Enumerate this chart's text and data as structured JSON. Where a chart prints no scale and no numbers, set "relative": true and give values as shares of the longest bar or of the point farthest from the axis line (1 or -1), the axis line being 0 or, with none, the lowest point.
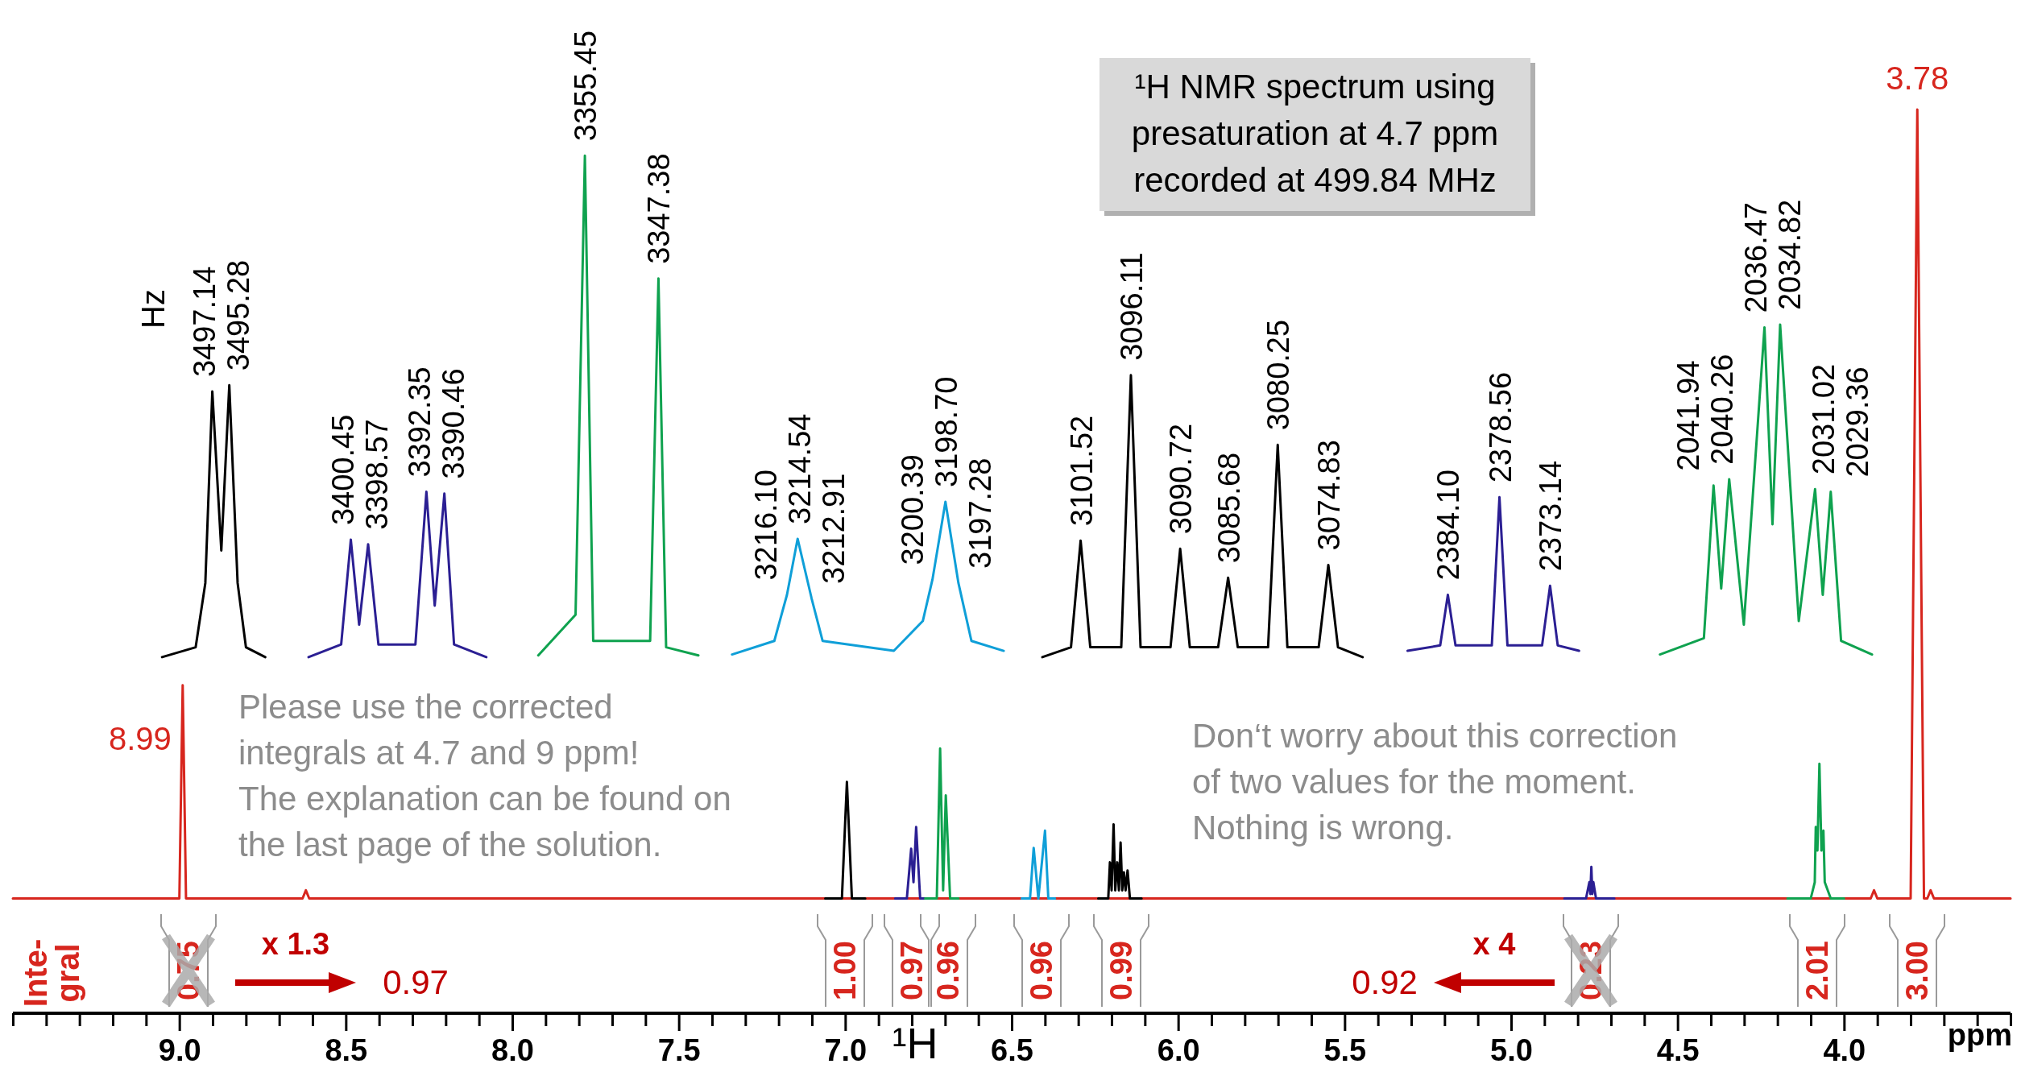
{
  "chart_data": {
    "type": "line",
    "relative": true,
    "xlabel": "¹H",
    "xlim": [
      9.5,
      3.5
    ],
    "xticks": [
      {
        "value": 9.5,
        "label": null
      },
      {
        "value": 9.4,
        "label": null
      },
      {
        "value": 9.3,
        "label": null
      },
      {
        "value": 9.2,
        "label": null
      },
      {
        "value": 9.1,
        "label": null
      },
      {
        "value": 9.0,
        "label": "9.0"
      },
      {
        "value": 8.9,
        "label": null
      },
      {
        "value": 8.8,
        "label": null
      },
      {
        "value": 8.7,
        "label": null
      },
      {
        "value": 8.6,
        "label": null
      },
      {
        "value": 8.5,
        "label": "8.5"
      },
      {
        "value": 8.4,
        "label": null
      },
      {
        "value": 8.3,
        "label": null
      },
      {
        "value": 8.2,
        "label": null
      },
      {
        "value": 8.1,
        "label": null
      },
      {
        "value": 8.0,
        "label": "8.0"
      },
      {
        "value": 7.9,
        "label": null
      },
      {
        "value": 7.8,
        "label": null
      },
      {
        "value": 7.7,
        "label": null
      },
      {
        "value": 7.6,
        "label": null
      },
      {
        "value": 7.5,
        "label": "7.5"
      },
      {
        "value": 7.4,
        "label": null
      },
      {
        "value": 7.3,
        "label": null
      },
      {
        "value": 7.2,
        "label": null
      },
      {
        "value": 7.1,
        "label": null
      },
      {
        "value": 7.0,
        "label": "7.0"
      },
      {
        "value": 6.9,
        "label": null
      },
      {
        "value": 6.8,
        "label": null
      },
      {
        "value": 6.7,
        "label": null
      },
      {
        "value": 6.6,
        "label": null
      },
      {
        "value": 6.5,
        "label": "6.5"
      },
      {
        "value": 6.4,
        "label": null
      },
      {
        "value": 6.3,
        "label": null
      },
      {
        "value": 6.2,
        "label": null
      },
      {
        "value": 6.1,
        "label": null
      },
      {
        "value": 6.0,
        "label": "6.0"
      },
      {
        "value": 5.9,
        "label": null
      },
      {
        "value": 5.8,
        "label": null
      },
      {
        "value": 5.7,
        "label": null
      },
      {
        "value": 5.6,
        "label": null
      },
      {
        "value": 5.5,
        "label": "5.5"
      },
      {
        "value": 5.4,
        "label": null
      },
      {
        "value": 5.3,
        "label": null
      },
      {
        "value": 5.2,
        "label": null
      },
      {
        "value": 5.1,
        "label": null
      },
      {
        "value": 5.0,
        "label": "5.0"
      },
      {
        "value": 4.9,
        "label": null
      },
      {
        "value": 4.8,
        "label": null
      },
      {
        "value": 4.7,
        "label": null
      },
      {
        "value": 4.6,
        "label": null
      },
      {
        "value": 4.5,
        "label": "4.5"
      },
      {
        "value": 4.4,
        "label": null
      },
      {
        "value": 4.3,
        "label": null
      },
      {
        "value": 4.2,
        "label": null
      },
      {
        "value": 4.1,
        "label": null
      },
      {
        "value": 4.0,
        "label": "4.0"
      },
      {
        "value": 3.9,
        "label": null
      },
      {
        "value": 3.8,
        "label": null
      },
      {
        "value": 3.7,
        "label": null
      },
      {
        "value": 3.6,
        "label": null
      },
      {
        "value": 3.5,
        "label": null
      }
    ],
    "series": [
      {
        "color": "#d7261e",
        "x": [
          9.5,
          9.0,
          8.99,
          8.98,
          8.63,
          8.62,
          8.61,
          3.92,
          3.91,
          3.9,
          3.8,
          3.78,
          3.76,
          3.75,
          3.74,
          3.73,
          3.5
        ],
        "values": [
          0.127,
          0.127,
          0.363,
          0.127,
          0.127,
          0.136,
          0.127,
          0.127,
          0.136,
          0.127,
          0.127,
          1.0,
          0.127,
          0.127,
          0.136,
          0.127,
          0.127
        ]
      },
      {
        "color": "#000000",
        "x": [
          7.06,
          7.01,
          6.995,
          6.98,
          6.94
        ],
        "values": [
          0.127,
          0.127,
          0.256,
          0.127,
          0.127
        ]
      },
      {
        "color": "#2b1f93",
        "x": [
          6.85,
          6.815,
          6.802,
          6.795,
          6.787,
          6.775,
          6.76
        ],
        "values": [
          0.127,
          0.127,
          0.182,
          0.145,
          0.206,
          0.127,
          0.127
        ]
      },
      {
        "color": "#0fa24f",
        "x": [
          6.76,
          6.725,
          6.715,
          6.706,
          6.698,
          6.685,
          6.66
        ],
        "values": [
          0.127,
          0.127,
          0.293,
          0.136,
          0.241,
          0.127,
          0.127
        ]
      },
      {
        "color": "#0f9fd8",
        "x": [
          6.47,
          6.445,
          6.434,
          6.42,
          6.4,
          6.39,
          6.37
        ],
        "values": [
          0.127,
          0.127,
          0.183,
          0.127,
          0.202,
          0.127,
          0.127
        ]
      },
      {
        "color": "#000000",
        "x": [
          6.24,
          6.21,
          6.205,
          6.2,
          6.194,
          6.189,
          6.183,
          6.178,
          6.173,
          6.168,
          6.163,
          6.158,
          6.152,
          6.145,
          6.11
        ],
        "values": [
          0.127,
          0.127,
          0.167,
          0.136,
          0.209,
          0.136,
          0.167,
          0.136,
          0.189,
          0.136,
          0.156,
          0.136,
          0.158,
          0.127,
          0.127
        ]
      },
      {
        "color": "#2b1f93",
        "x": [
          4.84,
          4.775,
          4.765,
          4.762,
          4.759,
          4.756,
          4.753,
          4.745,
          4.69
        ],
        "values": [
          0.127,
          0.127,
          0.145,
          0.132,
          0.162,
          0.132,
          0.145,
          0.127,
          0.127
        ]
      },
      {
        "color": "#0fa24f",
        "x": [
          4.17,
          4.1,
          4.088,
          4.085,
          4.08,
          4.074,
          4.068,
          4.062,
          4.058,
          4.04,
          4.0
        ],
        "values": [
          0.127,
          0.127,
          0.145,
          0.206,
          0.18,
          0.276,
          0.18,
          0.202,
          0.145,
          0.127,
          0.127
        ]
      },
      {
        "color": "#000000",
        "x": [
          9.052,
          8.951,
          8.922,
          8.901,
          8.874,
          8.85,
          8.825,
          8.8,
          8.742
        ],
        "values": [
          0.394,
          0.405,
          0.476,
          0.688,
          0.512,
          0.695,
          0.476,
          0.405,
          0.394
        ]
      },
      {
        "color": "#2b1f93",
        "x": [
          8.612,
          8.514,
          8.485,
          8.46,
          8.433,
          8.402,
          8.291,
          8.258,
          8.233,
          8.204,
          8.175,
          8.078
        ],
        "values": [
          0.394,
          0.408,
          0.524,
          0.43,
          0.519,
          0.408,
          0.408,
          0.577,
          0.451,
          0.575,
          0.408,
          0.394
        ]
      },
      {
        "color": "#0fa24f",
        "x": [
          7.922,
          7.81,
          7.782,
          7.757,
          7.586,
          7.561,
          7.538,
          7.441
        ],
        "values": [
          0.396,
          0.441,
          0.949,
          0.412,
          0.412,
          0.813,
          0.405,
          0.396
        ]
      },
      {
        "color": "#0f9fd8",
        "x": [
          7.34,
          7.213,
          7.175,
          7.143,
          7.101,
          7.068,
          6.854,
          6.767,
          6.738,
          6.699,
          6.66,
          6.621,
          6.524
        ],
        "values": [
          0.397,
          0.412,
          0.463,
          0.525,
          0.459,
          0.412,
          0.401,
          0.434,
          0.48,
          0.566,
          0.476,
          0.412,
          0.401
        ]
      },
      {
        "color": "#000000",
        "x": [
          6.408,
          6.322,
          6.293,
          6.264,
          6.171,
          6.142,
          6.113,
          6.023,
          5.994,
          5.965,
          5.88,
          5.85,
          5.821,
          5.73,
          5.701,
          5.672,
          5.578,
          5.549,
          5.52,
          5.446
        ],
        "values": [
          0.394,
          0.405,
          0.523,
          0.405,
          0.405,
          0.706,
          0.405,
          0.405,
          0.514,
          0.405,
          0.405,
          0.482,
          0.405,
          0.405,
          0.629,
          0.405,
          0.405,
          0.496,
          0.405,
          0.394
        ]
      },
      {
        "color": "#2b1f93",
        "x": [
          5.311,
          5.213,
          5.19,
          5.167,
          5.058,
          5.035,
          5.011,
          4.907,
          4.883,
          4.86,
          4.796
        ],
        "values": [
          0.401,
          0.407,
          0.463,
          0.407,
          0.407,
          0.571,
          0.407,
          0.407,
          0.473,
          0.407,
          0.401
        ]
      },
      {
        "color": "#0fa24f",
        "x": [
          4.553,
          4.421,
          4.392,
          4.369,
          4.345,
          4.301,
          4.239,
          4.215,
          4.192,
          4.136,
          4.087,
          4.064,
          4.04,
          4.009,
          3.916
        ],
        "values": [
          0.397,
          0.415,
          0.584,
          0.47,
          0.591,
          0.43,
          0.759,
          0.541,
          0.762,
          0.434,
          0.58,
          0.463,
          0.577,
          0.412,
          0.397
        ]
      }
    ],
    "annotations": [
      "Hz",
      "¹H NMR spectrum using\npresaturation at 4.7 ppm\nrecorded at 499.84 MHz",
      "Please use the corrected\nintegrals at 4.7 and 9 ppm!\nThe explanation can be found on\nthe last page of the solution.",
      "Don‘t worry about this correction\nof two values for the moment.\nNothing is wrong.",
      "Inte-\ngral",
      "ppm",
      {
        "text": "8.99",
        "x": 8.99,
        "y": 0.363
      },
      {
        "text": "3.78",
        "x": 3.78,
        "y": 1.0
      },
      {
        "text": "3497.14",
        "x": 8.901,
        "y": 0.688
      },
      {
        "text": "3495.28",
        "x": 8.85,
        "y": 0.695
      },
      {
        "text": "3400.45",
        "x": 8.485,
        "y": 0.524
      },
      {
        "text": "3398.57",
        "x": 8.433,
        "y": 0.519
      },
      {
        "text": "3392.35",
        "x": 8.258,
        "y": 0.577
      },
      {
        "text": "3390.46",
        "x": 8.204,
        "y": 0.575
      },
      {
        "text": "3355.45",
        "x": 7.782,
        "y": 0.949
      },
      {
        "text": "3347.38",
        "x": 7.561,
        "y": 0.813
      },
      {
        "text": "3216.10",
        "x": 7.175,
        "y": 0.463
      },
      {
        "text": "3214.54",
        "x": 7.143,
        "y": 0.525
      },
      {
        "text": "3212.91",
        "x": 7.101,
        "y": 0.459
      },
      {
        "text": "3200.39",
        "x": 6.738,
        "y": 0.48
      },
      {
        "text": "3198.70",
        "x": 6.699,
        "y": 0.566
      },
      {
        "text": "3197.28",
        "x": 6.66,
        "y": 0.476
      },
      {
        "text": "3101.52",
        "x": 6.293,
        "y": 0.523
      },
      {
        "text": "3096.11",
        "x": 6.142,
        "y": 0.706
      },
      {
        "text": "3090.72",
        "x": 5.994,
        "y": 0.514
      },
      {
        "text": "3085.68",
        "x": 5.85,
        "y": 0.482
      },
      {
        "text": "3080.25",
        "x": 5.701,
        "y": 0.629
      },
      {
        "text": "3074.83",
        "x": 5.549,
        "y": 0.496
      },
      {
        "text": "2384.10",
        "x": 5.19,
        "y": 0.463
      },
      {
        "text": "2378.56",
        "x": 5.035,
        "y": 0.571
      },
      {
        "text": "2373.14",
        "x": 4.883,
        "y": 0.473
      },
      {
        "text": "2041.94",
        "x": 4.392,
        "y": 0.584
      },
      {
        "text": "2040.26",
        "x": 4.345,
        "y": 0.591
      },
      {
        "text": "2036.47",
        "x": 4.239,
        "y": 0.759
      },
      {
        "text": "2034.82",
        "x": 4.192,
        "y": 0.762
      },
      {
        "text": "2031.02",
        "x": 4.087,
        "y": 0.58
      },
      {
        "text": "2029.36",
        "x": 4.04,
        "y": 0.577
      },
      "0.75",
      "x 1.3",
      "0.97",
      "1.00",
      "0.97",
      "0.96",
      "0.96",
      "0.99",
      "x 4",
      "0.92",
      "0.23",
      "2.01",
      "3.00"
    ]
  }
}
